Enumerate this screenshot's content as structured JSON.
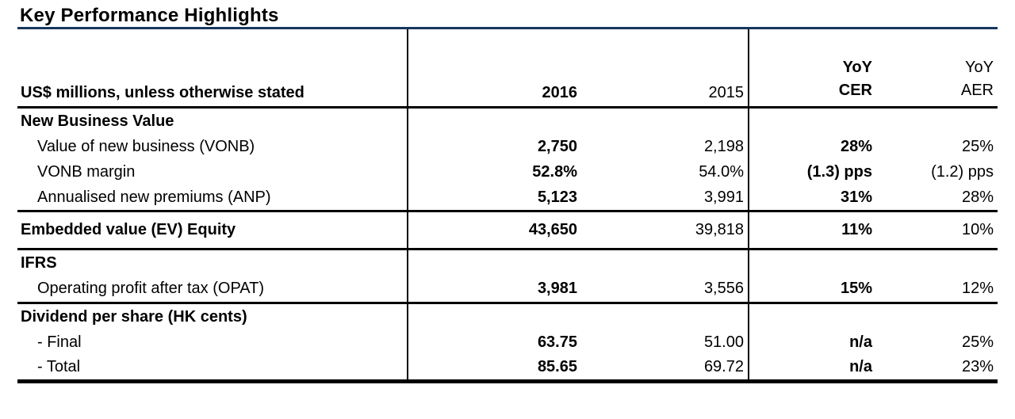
{
  "page": {
    "title": "Key Performance Highlights"
  },
  "colors": {
    "accent_rule": "#17365D",
    "table_rule": "#000000",
    "text": "#000000"
  },
  "table": {
    "unit_label": "US$ millions, unless otherwise stated",
    "columns": [
      {
        "key": "y2016",
        "label": "2016"
      },
      {
        "key": "y2015",
        "label": "2015"
      },
      {
        "key": "cer",
        "line1": "YoY",
        "line2": "CER"
      },
      {
        "key": "aer",
        "line1": "YoY",
        "line2": "AER"
      }
    ],
    "sections": [
      {
        "header": "New Business Value",
        "rows": [
          {
            "label": "Value of new business (VONB)",
            "y2016": "2,750",
            "y2015": "2,198",
            "cer": "28%",
            "aer": "25%"
          },
          {
            "label": "VONB margin",
            "y2016": "52.8%",
            "y2015": "54.0%",
            "cer": "(1.3) pps",
            "aer": "(1.2) pps"
          },
          {
            "label": "Annualised new premiums (ANP)",
            "y2016": "5,123",
            "y2015": "3,991",
            "cer": "31%",
            "aer": "28%"
          }
        ]
      },
      {
        "header": "Embedded value (EV) Equity",
        "values": {
          "y2016": "43,650",
          "y2015": "39,818",
          "cer": "11%",
          "aer": "10%"
        }
      },
      {
        "header": "IFRS",
        "rows": [
          {
            "label": "Operating profit after tax (OPAT)",
            "y2016": "3,981",
            "y2015": "3,556",
            "cer": "15%",
            "aer": "12%"
          }
        ]
      },
      {
        "header": "Dividend per share (HK cents)",
        "rows": [
          {
            "label": "- Final",
            "y2016": "63.75",
            "y2015": "51.00",
            "cer": "n/a",
            "aer": "25%"
          },
          {
            "label": "- Total",
            "y2016": "85.65",
            "y2015": "69.72",
            "cer": "n/a",
            "aer": "23%"
          }
        ]
      }
    ]
  }
}
